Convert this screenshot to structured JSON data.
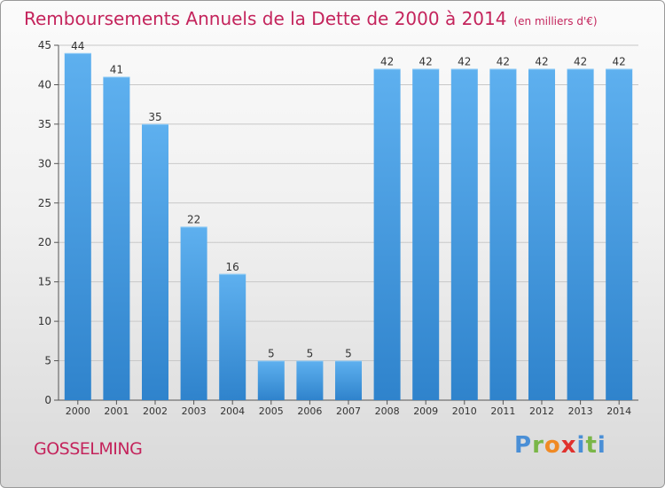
{
  "chart_data": {
    "type": "bar",
    "title": "Remboursements Annuels de la Dette de 2000 à 2014",
    "unit_note": "(en milliers d'€)",
    "categories": [
      "2000",
      "2001",
      "2002",
      "2003",
      "2004",
      "2005",
      "2006",
      "2007",
      "2008",
      "2009",
      "2010",
      "2011",
      "2012",
      "2013",
      "2014"
    ],
    "values": [
      44,
      41,
      35,
      22,
      16,
      5,
      5,
      5,
      42,
      42,
      42,
      42,
      42,
      42,
      42
    ],
    "ylim": [
      0,
      45
    ],
    "yticks": [
      0,
      5,
      10,
      15,
      20,
      25,
      30,
      35,
      40,
      45
    ],
    "grid": true,
    "bar_color": "#3f95db"
  },
  "place_name": "GOSSELMING",
  "logo": {
    "text": "Proxiti",
    "colors": [
      "#4a8fd6",
      "#7ab648",
      "#f08a24",
      "#e0312d",
      "#4a8fd6",
      "#7ab648",
      "#4a8fd6"
    ]
  }
}
